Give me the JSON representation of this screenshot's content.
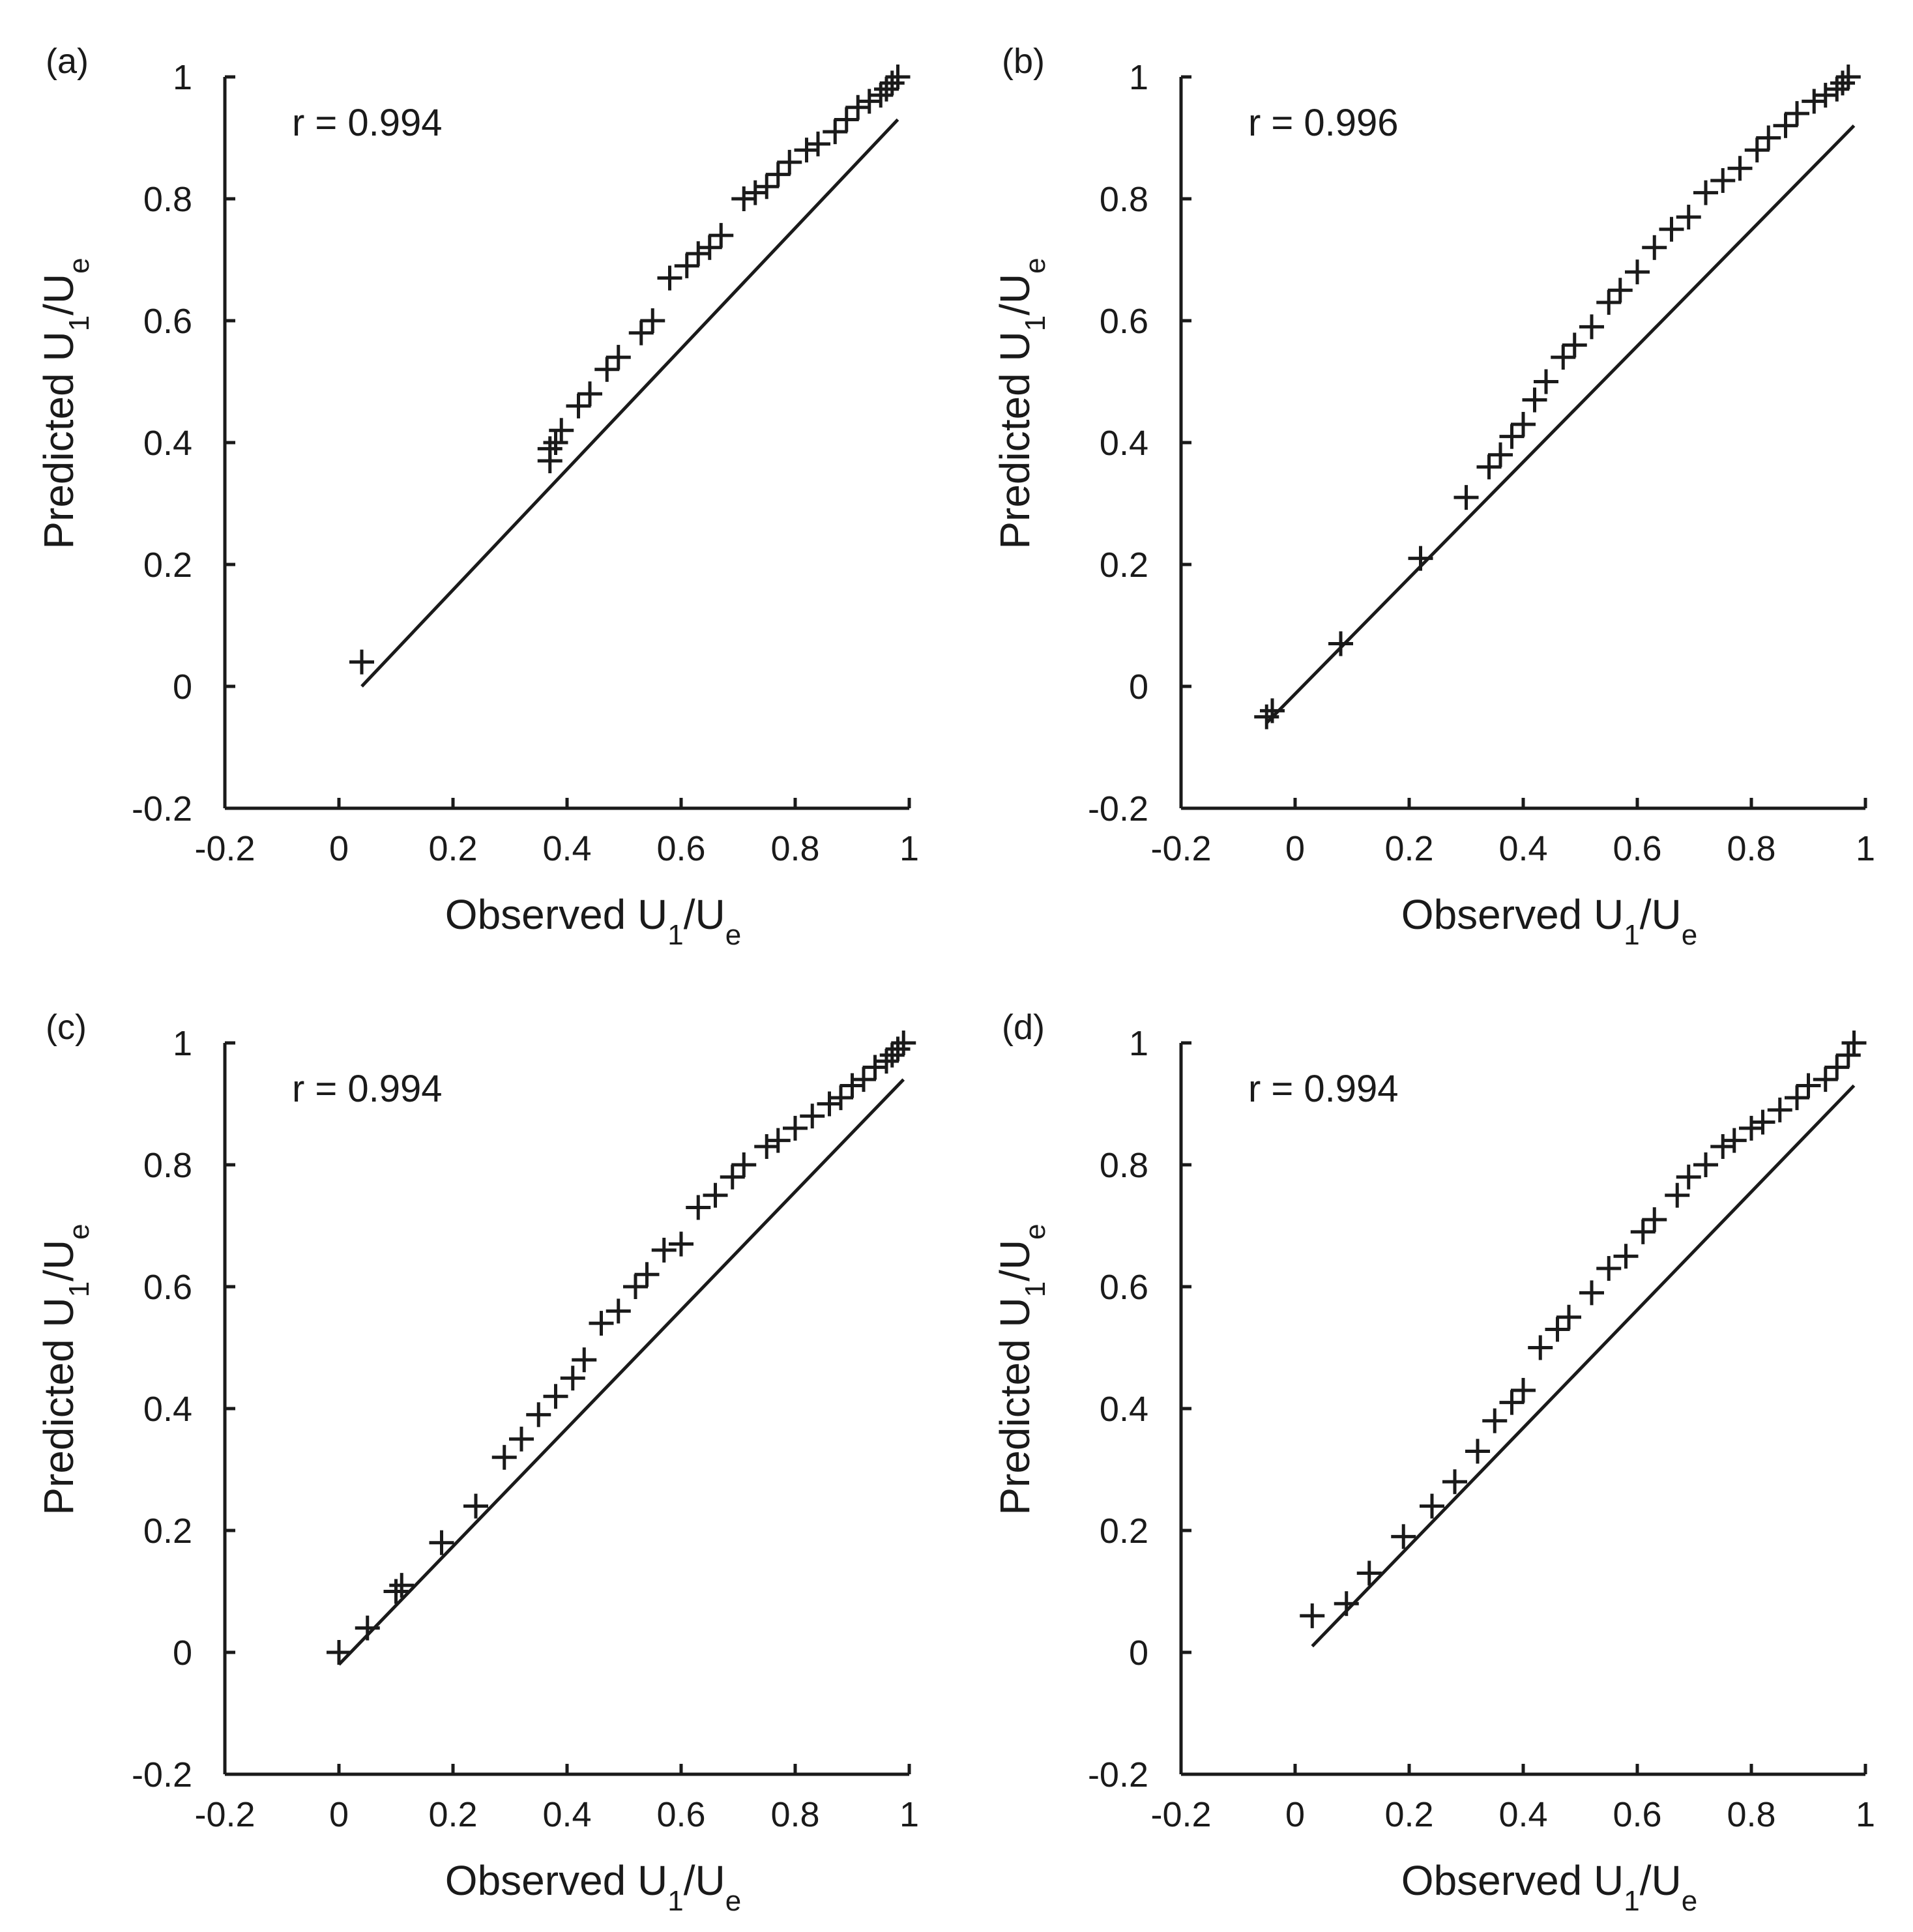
{
  "figure": {
    "panel_count": 4
  },
  "chart_data": [
    {
      "panel_label": "(a)",
      "type": "scatter",
      "marker": "+",
      "annotation": "r = 0.994",
      "xlabel": {
        "main": "Observed U",
        "sub1": "1",
        "sep": "/U",
        "sub2": "e"
      },
      "ylabel": {
        "main": "Predicted U",
        "sub1": "1",
        "sep": "/U",
        "sub2": "e"
      },
      "xlim": [
        -0.2,
        1
      ],
      "ylim": [
        -0.2,
        1
      ],
      "xticks": [
        -0.2,
        0,
        0.2,
        0.4,
        0.6,
        0.8,
        1
      ],
      "yticks": [
        -0.2,
        0,
        0.2,
        0.4,
        0.6,
        0.8,
        1
      ],
      "xtick_labels": [
        "-0.2",
        "0",
        "0.2",
        "0.4",
        "0.6",
        "0.8",
        "1"
      ],
      "ytick_labels": [
        "-0.2",
        "0",
        "0.2",
        "0.4",
        "0.6",
        "0.8",
        "1"
      ],
      "fit_line": {
        "x": [
          0.04,
          0.98
        ],
        "y": [
          0.0,
          0.93
        ]
      },
      "points": [
        [
          0.04,
          0.04
        ],
        [
          0.37,
          0.37
        ],
        [
          0.37,
          0.39
        ],
        [
          0.38,
          0.4
        ],
        [
          0.39,
          0.42
        ],
        [
          0.42,
          0.46
        ],
        [
          0.44,
          0.48
        ],
        [
          0.47,
          0.52
        ],
        [
          0.49,
          0.54
        ],
        [
          0.53,
          0.58
        ],
        [
          0.55,
          0.6
        ],
        [
          0.58,
          0.67
        ],
        [
          0.61,
          0.69
        ],
        [
          0.63,
          0.71
        ],
        [
          0.65,
          0.72
        ],
        [
          0.67,
          0.74
        ],
        [
          0.71,
          0.8
        ],
        [
          0.73,
          0.81
        ],
        [
          0.75,
          0.82
        ],
        [
          0.77,
          0.84
        ],
        [
          0.79,
          0.86
        ],
        [
          0.82,
          0.88
        ],
        [
          0.84,
          0.89
        ],
        [
          0.87,
          0.91
        ],
        [
          0.89,
          0.93
        ],
        [
          0.91,
          0.95
        ],
        [
          0.93,
          0.96
        ],
        [
          0.95,
          0.97
        ],
        [
          0.96,
          0.98
        ],
        [
          0.97,
          0.99
        ],
        [
          0.98,
          1.0
        ]
      ]
    },
    {
      "panel_label": "(b)",
      "type": "scatter",
      "marker": "+",
      "annotation": "r = 0.996",
      "xlabel": {
        "main": "Observed U",
        "sub1": "1",
        "sep": "/U",
        "sub2": "e"
      },
      "ylabel": {
        "main": "Predicted U",
        "sub1": "1",
        "sep": "/U",
        "sub2": "e"
      },
      "xlim": [
        -0.2,
        1
      ],
      "ylim": [
        -0.2,
        1
      ],
      "xticks": [
        -0.2,
        0,
        0.2,
        0.4,
        0.6,
        0.8,
        1
      ],
      "yticks": [
        -0.2,
        0,
        0.2,
        0.4,
        0.6,
        0.8,
        1
      ],
      "xtick_labels": [
        "-0.2",
        "0",
        "0.2",
        "0.4",
        "0.6",
        "0.8",
        "1"
      ],
      "ytick_labels": [
        "-0.2",
        "0",
        "0.2",
        "0.4",
        "0.6",
        "0.8",
        "1"
      ],
      "fit_line": {
        "x": [
          -0.05,
          0.98
        ],
        "y": [
          -0.06,
          0.92
        ]
      },
      "points": [
        [
          -0.05,
          -0.05
        ],
        [
          -0.04,
          -0.04
        ],
        [
          0.08,
          0.07
        ],
        [
          0.22,
          0.21
        ],
        [
          0.3,
          0.31
        ],
        [
          0.34,
          0.36
        ],
        [
          0.36,
          0.38
        ],
        [
          0.38,
          0.41
        ],
        [
          0.4,
          0.43
        ],
        [
          0.42,
          0.47
        ],
        [
          0.44,
          0.5
        ],
        [
          0.47,
          0.54
        ],
        [
          0.49,
          0.56
        ],
        [
          0.52,
          0.59
        ],
        [
          0.55,
          0.63
        ],
        [
          0.57,
          0.65
        ],
        [
          0.6,
          0.68
        ],
        [
          0.63,
          0.72
        ],
        [
          0.66,
          0.75
        ],
        [
          0.69,
          0.77
        ],
        [
          0.72,
          0.81
        ],
        [
          0.75,
          0.83
        ],
        [
          0.78,
          0.85
        ],
        [
          0.81,
          0.88
        ],
        [
          0.83,
          0.9
        ],
        [
          0.86,
          0.92
        ],
        [
          0.88,
          0.94
        ],
        [
          0.91,
          0.96
        ],
        [
          0.93,
          0.97
        ],
        [
          0.95,
          0.98
        ],
        [
          0.96,
          0.99
        ],
        [
          0.97,
          1.0
        ]
      ]
    },
    {
      "panel_label": "(c)",
      "type": "scatter",
      "marker": "+",
      "annotation": "r = 0.994",
      "xlabel": {
        "main": "Observed U",
        "sub1": "1",
        "sep": "/U",
        "sub2": "e"
      },
      "ylabel": {
        "main": "Predicted U",
        "sub1": "1",
        "sep": "/U",
        "sub2": "e"
      },
      "xlim": [
        -0.2,
        1
      ],
      "ylim": [
        -0.2,
        1
      ],
      "xticks": [
        -0.2,
        0,
        0.2,
        0.4,
        0.6,
        0.8,
        1
      ],
      "yticks": [
        -0.2,
        0,
        0.2,
        0.4,
        0.6,
        0.8,
        1
      ],
      "xtick_labels": [
        "-0.2",
        "0",
        "0.2",
        "0.4",
        "0.6",
        "0.8",
        "1"
      ],
      "ytick_labels": [
        "-0.2",
        "0",
        "0.2",
        "0.4",
        "0.6",
        "0.8",
        "1"
      ],
      "fit_line": {
        "x": [
          0.0,
          0.99
        ],
        "y": [
          -0.02,
          0.94
        ]
      },
      "points": [
        [
          0.0,
          0.0
        ],
        [
          0.05,
          0.04
        ],
        [
          0.1,
          0.1
        ],
        [
          0.11,
          0.11
        ],
        [
          0.18,
          0.18
        ],
        [
          0.24,
          0.24
        ],
        [
          0.29,
          0.32
        ],
        [
          0.32,
          0.35
        ],
        [
          0.35,
          0.39
        ],
        [
          0.38,
          0.42
        ],
        [
          0.41,
          0.45
        ],
        [
          0.43,
          0.48
        ],
        [
          0.46,
          0.54
        ],
        [
          0.49,
          0.56
        ],
        [
          0.52,
          0.6
        ],
        [
          0.54,
          0.62
        ],
        [
          0.57,
          0.66
        ],
        [
          0.6,
          0.67
        ],
        [
          0.63,
          0.73
        ],
        [
          0.66,
          0.75
        ],
        [
          0.69,
          0.78
        ],
        [
          0.71,
          0.8
        ],
        [
          0.75,
          0.83
        ],
        [
          0.77,
          0.84
        ],
        [
          0.8,
          0.86
        ],
        [
          0.83,
          0.88
        ],
        [
          0.86,
          0.9
        ],
        [
          0.88,
          0.91
        ],
        [
          0.9,
          0.93
        ],
        [
          0.92,
          0.94
        ],
        [
          0.94,
          0.96
        ],
        [
          0.96,
          0.97
        ],
        [
          0.97,
          0.98
        ],
        [
          0.98,
          0.99
        ],
        [
          0.99,
          1.0
        ]
      ]
    },
    {
      "panel_label": "(d)",
      "type": "scatter",
      "marker": "+",
      "annotation": "r = 0.994",
      "xlabel": {
        "main": "Observed U",
        "sub1": "1",
        "sep": "/U",
        "sub2": "e"
      },
      "ylabel": {
        "main": "Predicted U",
        "sub1": "1",
        "sep": "/U",
        "sub2": "e"
      },
      "xlim": [
        -0.2,
        1
      ],
      "ylim": [
        -0.2,
        1
      ],
      "xticks": [
        -0.2,
        0,
        0.2,
        0.4,
        0.6,
        0.8,
        1
      ],
      "yticks": [
        -0.2,
        0,
        0.2,
        0.4,
        0.6,
        0.8,
        1
      ],
      "xtick_labels": [
        "-0.2",
        "0",
        "0.2",
        "0.4",
        "0.6",
        "0.8",
        "1"
      ],
      "ytick_labels": [
        "-0.2",
        "0",
        "0.2",
        "0.4",
        "0.6",
        "0.8",
        "1"
      ],
      "fit_line": {
        "x": [
          0.03,
          0.98
        ],
        "y": [
          0.01,
          0.93
        ]
      },
      "points": [
        [
          0.03,
          0.06
        ],
        [
          0.09,
          0.08
        ],
        [
          0.13,
          0.13
        ],
        [
          0.19,
          0.19
        ],
        [
          0.24,
          0.24
        ],
        [
          0.28,
          0.28
        ],
        [
          0.32,
          0.33
        ],
        [
          0.35,
          0.38
        ],
        [
          0.38,
          0.41
        ],
        [
          0.4,
          0.43
        ],
        [
          0.43,
          0.5
        ],
        [
          0.46,
          0.53
        ],
        [
          0.48,
          0.55
        ],
        [
          0.52,
          0.59
        ],
        [
          0.55,
          0.63
        ],
        [
          0.58,
          0.65
        ],
        [
          0.61,
          0.69
        ],
        [
          0.63,
          0.71
        ],
        [
          0.67,
          0.75
        ],
        [
          0.69,
          0.78
        ],
        [
          0.72,
          0.8
        ],
        [
          0.75,
          0.83
        ],
        [
          0.77,
          0.84
        ],
        [
          0.8,
          0.86
        ],
        [
          0.82,
          0.87
        ],
        [
          0.85,
          0.89
        ],
        [
          0.88,
          0.91
        ],
        [
          0.9,
          0.93
        ],
        [
          0.93,
          0.94
        ],
        [
          0.95,
          0.96
        ],
        [
          0.97,
          0.98
        ],
        [
          0.98,
          1.0
        ]
      ]
    }
  ]
}
